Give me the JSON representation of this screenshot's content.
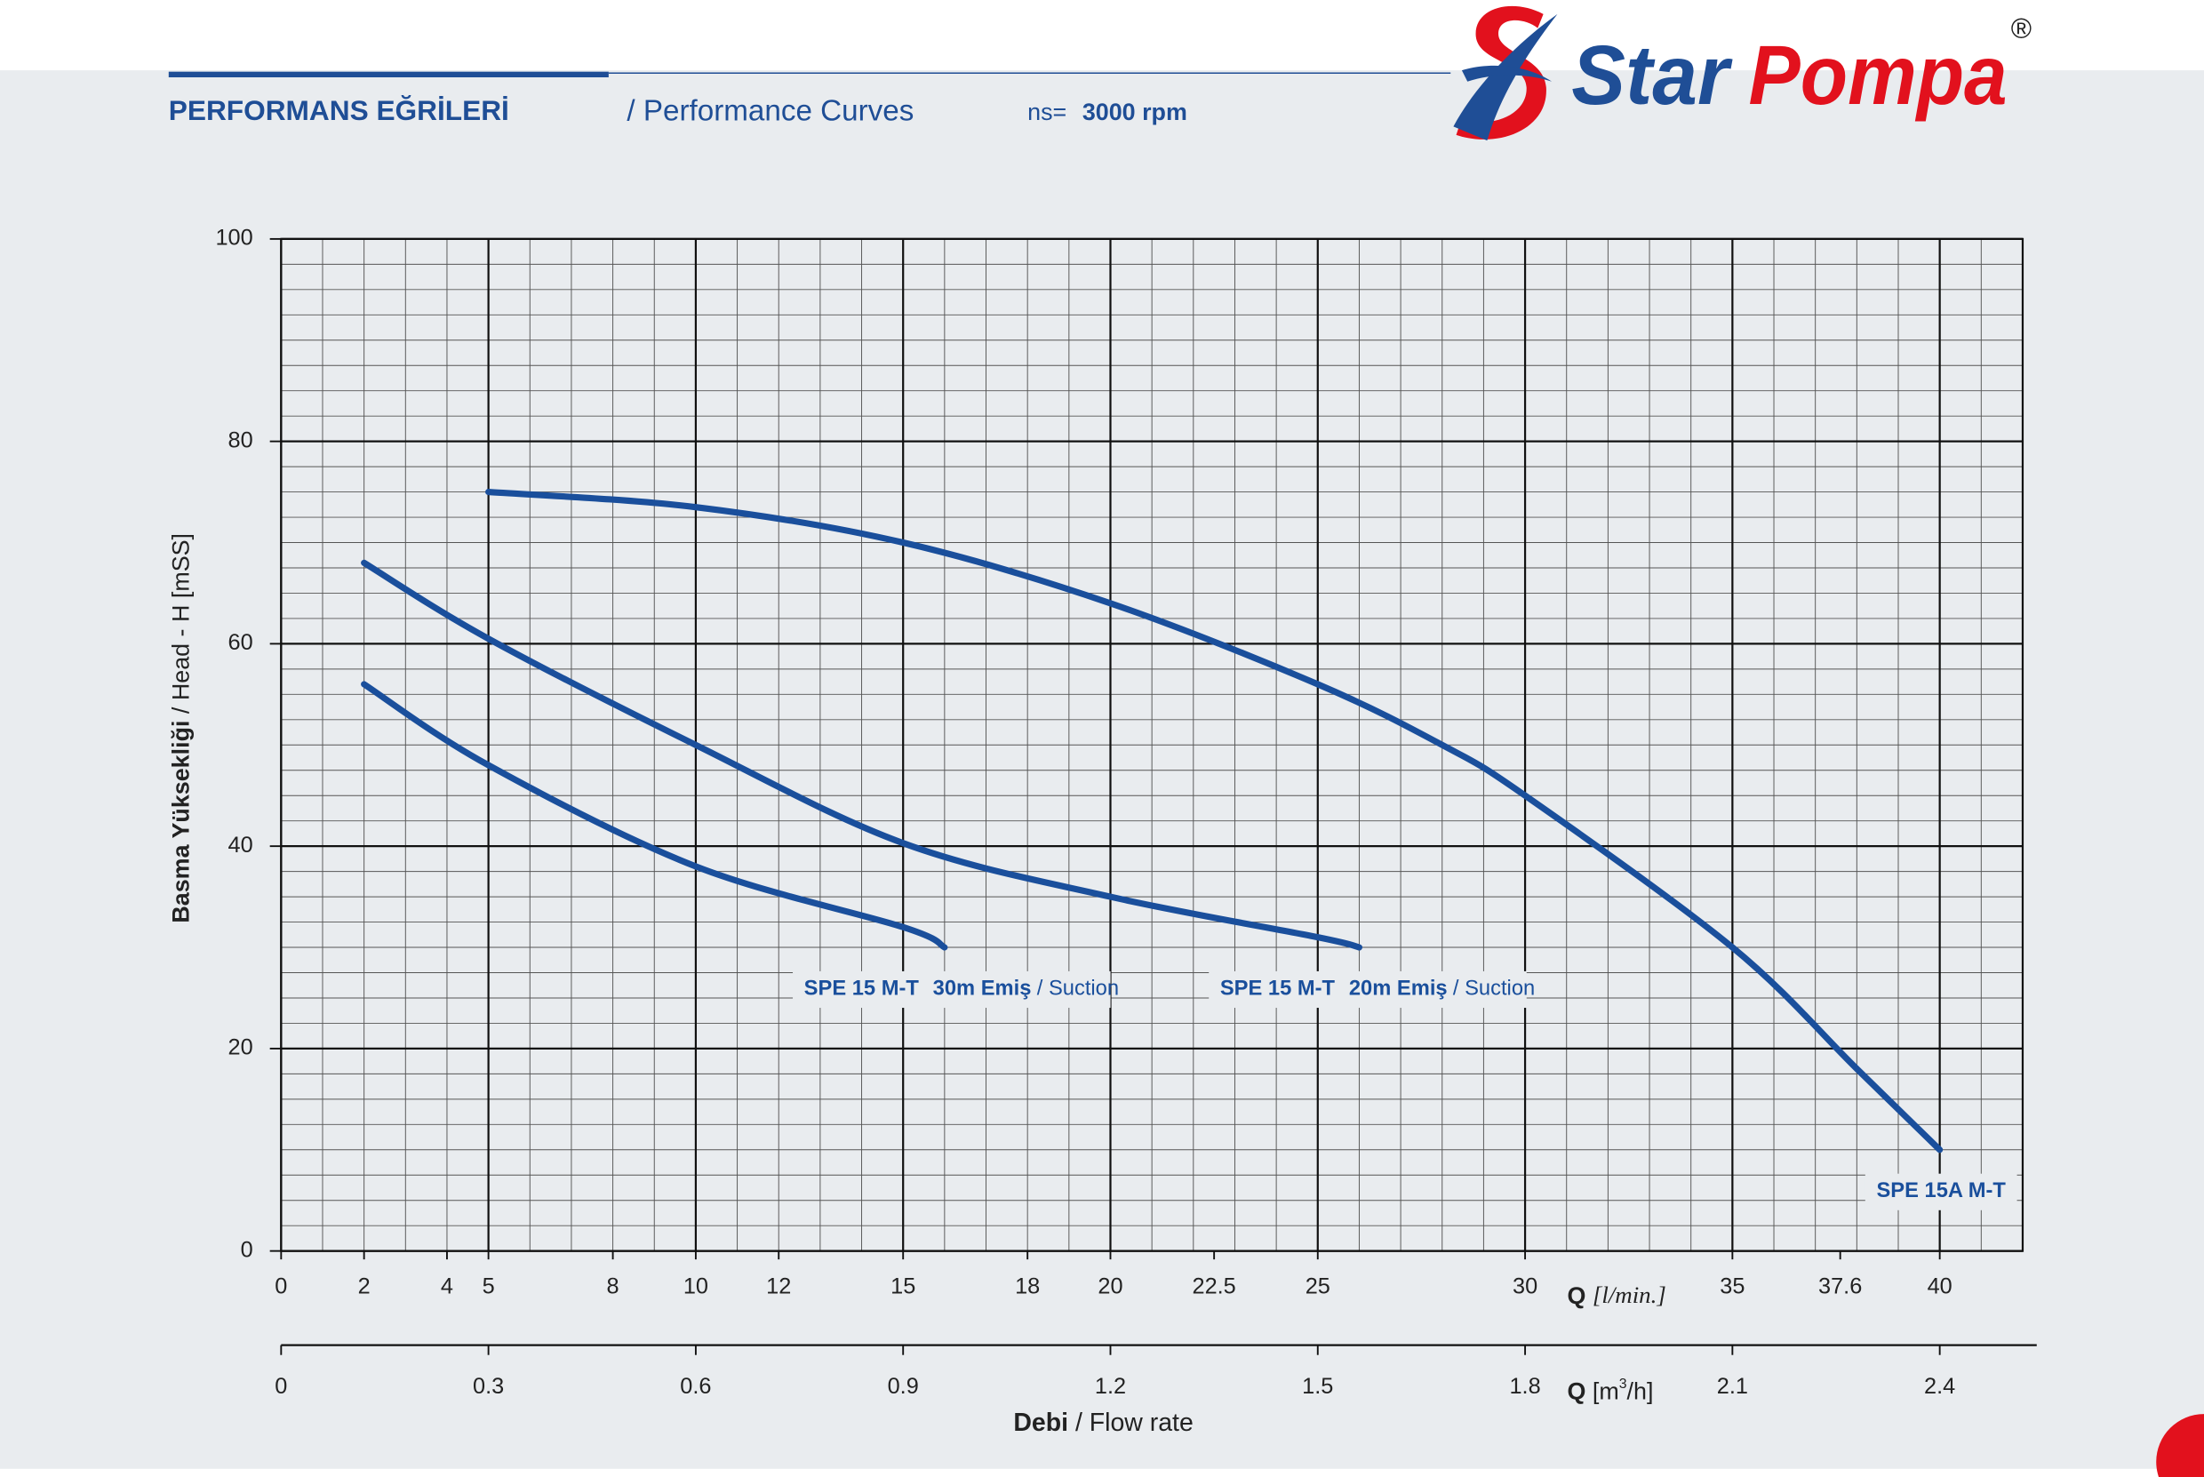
{
  "header": {
    "title": "PERFORMANS EĞRİLERİ",
    "subtitle": "/ Performance Curves",
    "speed_label": "ns=",
    "speed": "3000 rpm"
  },
  "logo": {
    "word1": "Star",
    "word2": "Pompa",
    "mark": "®"
  },
  "chart_data": {
    "type": "line",
    "y_label": {
      "bold": "Basma Yüksekliği",
      "normal": "/ Head - H [mSS]"
    },
    "x_label": {
      "bold": "Q",
      "unit": "[l/min.]"
    },
    "x2_label": {
      "bold": "Q",
      "unit_pre": "[m",
      "unit_sup": "3",
      "unit_post": "/h]"
    },
    "bottom_label": {
      "bold": "Debi",
      "normal": "/ Flow rate"
    },
    "xlim": [
      0,
      42
    ],
    "ylim": [
      0,
      100
    ],
    "xticks": [
      0,
      2,
      4,
      5,
      8,
      10,
      12,
      15,
      18,
      20,
      22.5,
      25,
      30,
      35,
      37.6,
      40
    ],
    "yticks": [
      0,
      20,
      40,
      60,
      80,
      100
    ],
    "xgrid": [
      0,
      5,
      10,
      15,
      20,
      25,
      30,
      35,
      40
    ],
    "x_minor_step": 1,
    "y_minor_step": 2.5,
    "x2lim": [
      0,
      2.52
    ],
    "x2ticks": [
      0,
      0.3,
      0.6,
      0.9,
      1.2,
      1.5,
      1.8,
      2.1,
      2.4
    ],
    "grid": true,
    "series": [
      {
        "name": "SPE 15 M-T",
        "suction": "30m Emiş",
        "suction_en": "/ Suction",
        "color": "#1a4f9c",
        "x": [
          2,
          5,
          10,
          15,
          16
        ],
        "values": [
          56,
          48,
          38,
          32,
          30
        ]
      },
      {
        "name": "SPE 15 M-T",
        "suction": "20m Emiş",
        "suction_en": "/ Suction",
        "color": "#1a4f9c",
        "x": [
          2,
          5,
          10,
          15,
          20,
          25,
          26
        ],
        "values": [
          68,
          60.5,
          50,
          40.3,
          35,
          31,
          30
        ]
      },
      {
        "name": "SPE 15A M-T",
        "color": "#1a4f9c",
        "x": [
          5,
          10,
          15,
          20,
          25,
          28,
          30,
          35,
          38,
          40
        ],
        "values": [
          75,
          73.5,
          70,
          64,
          56,
          50,
          45,
          30,
          18,
          10
        ]
      }
    ]
  }
}
